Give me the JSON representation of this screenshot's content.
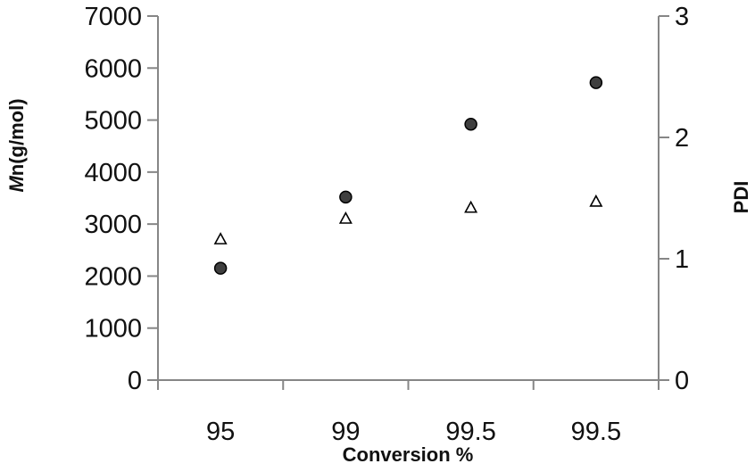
{
  "chart_data": {
    "type": "scatter",
    "title": "",
    "categories": [
      "95",
      "99",
      "99.5",
      "99.5"
    ],
    "xlabel": "Conversion %",
    "ylabel": {
      "italic_part": "M",
      "rest": "n(g/mol)"
    },
    "y2label": "PDI",
    "ylim": [
      0,
      7000
    ],
    "y_ticks": [
      "0",
      "1000",
      "2000",
      "3000",
      "4000",
      "5000",
      "6000",
      "7000"
    ],
    "y2lim": [
      0,
      3
    ],
    "y2_ticks": [
      "0",
      "1",
      "2",
      "3"
    ],
    "grid": false,
    "legend": "none",
    "series": [
      {
        "axis": "left",
        "marker": "circle",
        "color": "#3f3f3f",
        "values": [
          2150,
          3520,
          4920,
          5720
        ]
      },
      {
        "axis": "right",
        "marker": "triangle-open",
        "color": "#ffffff",
        "values": [
          1.16,
          1.33,
          1.42,
          1.47
        ]
      }
    ]
  }
}
